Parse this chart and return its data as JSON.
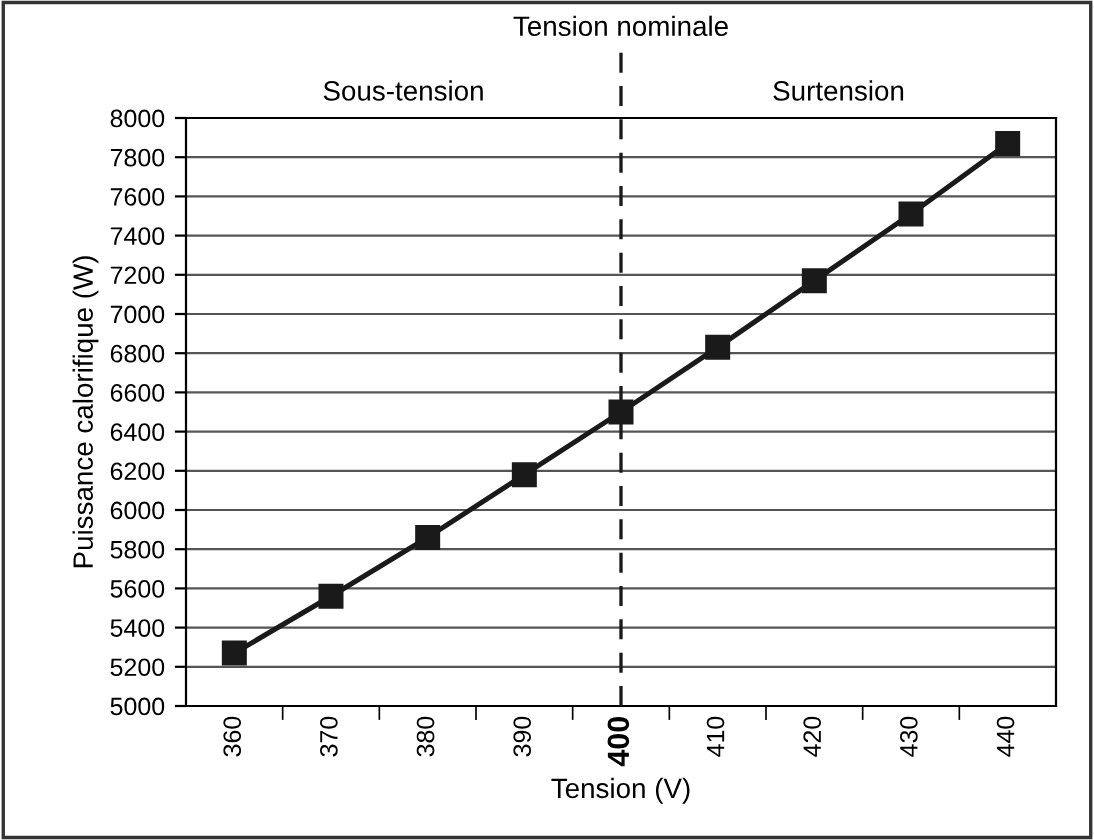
{
  "chart_data": {
    "type": "line",
    "xlabel": "Tension (V)",
    "ylabel": "Puissance calorifique (W)",
    "categories": [
      "360",
      "370",
      "380",
      "390",
      "400",
      "410",
      "420",
      "430",
      "440"
    ],
    "series": [
      {
        "color": "#1a1a1a",
        "values": [
          5270,
          5560,
          5860,
          6180,
          6500,
          6830,
          7170,
          7510,
          7870
        ]
      }
    ],
    "ylim": [
      5000,
      8000
    ],
    "yticks": [
      5000,
      5200,
      5400,
      5600,
      5800,
      6000,
      6200,
      6400,
      6600,
      6800,
      7000,
      7200,
      7400,
      7600,
      7800,
      8000
    ],
    "grid": "y",
    "marker": "square",
    "line_style": "solid",
    "ref_lines": [
      {
        "axis": "x",
        "value": "400",
        "label": "Tension nominale",
        "color": "#1a1a1a",
        "line_style": "dashed"
      }
    ],
    "annotations": [
      "Sous-tension",
      "Surtension"
    ]
  }
}
